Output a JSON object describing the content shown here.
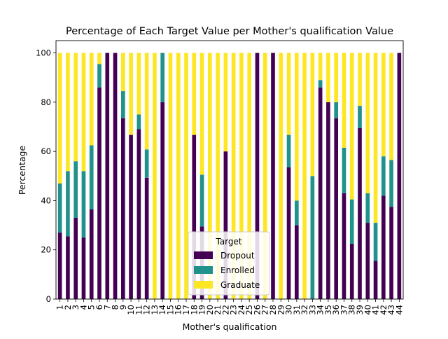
{
  "chart_data": {
    "type": "bar",
    "stacked": true,
    "title": "Percentage of Each Target Value per Mother's qualification Value",
    "xlabel": "Mother's qualification",
    "ylabel": "Percentage",
    "ylim": [
      0,
      105
    ],
    "yticks": [
      0,
      20,
      40,
      60,
      80,
      100
    ],
    "categories": [
      "1",
      "2",
      "3",
      "4",
      "5",
      "6",
      "7",
      "8",
      "9",
      "10",
      "11",
      "12",
      "13",
      "14",
      "15",
      "16",
      "17",
      "18",
      "19",
      "20",
      "21",
      "22",
      "23",
      "24",
      "25",
      "26",
      "27",
      "28",
      "29",
      "30",
      "31",
      "32",
      "33",
      "34",
      "35",
      "36",
      "37",
      "38",
      "39",
      "40",
      "41",
      "42",
      "43",
      "44"
    ],
    "legend": {
      "title": "Target",
      "position": "lower-center"
    },
    "series": [
      {
        "name": "Dropout",
        "color": "#440154",
        "values": [
          27,
          25.5,
          33,
          25,
          36.5,
          86,
          100,
          100,
          73.5,
          66.7,
          69,
          49.3,
          0,
          80,
          0,
          0,
          0,
          66.7,
          29.5,
          0,
          0,
          60,
          0,
          0,
          0,
          100,
          0,
          100,
          0,
          53.5,
          30,
          0,
          0,
          86,
          80,
          73.5,
          43,
          22.5,
          69.5,
          31,
          15.5,
          42,
          37.5,
          100
        ]
      },
      {
        "name": "Enrolled",
        "color": "#21918c",
        "values": [
          20,
          26.5,
          23,
          27,
          26,
          9.5,
          0,
          0,
          11,
          0,
          6,
          11.5,
          0,
          20,
          0,
          0,
          0,
          0,
          21,
          0,
          0,
          0,
          0,
          0,
          0,
          0,
          0,
          0,
          0,
          13.2,
          10,
          0,
          50,
          3,
          0,
          6.5,
          18.5,
          18,
          9,
          12,
          15.5,
          16,
          19,
          0
        ]
      },
      {
        "name": "Graduate",
        "color": "#fde725",
        "values": [
          53,
          48,
          44,
          48,
          37.5,
          4.5,
          0,
          0,
          15.5,
          33.3,
          25,
          39.2,
          100,
          0,
          100,
          100,
          100,
          33.3,
          49.5,
          100,
          100,
          40,
          100,
          100,
          100,
          0,
          100,
          0,
          100,
          33.3,
          60,
          100,
          50,
          11,
          20,
          20,
          38.5,
          59.5,
          21.5,
          57,
          69,
          42,
          43.5,
          0
        ]
      }
    ]
  }
}
